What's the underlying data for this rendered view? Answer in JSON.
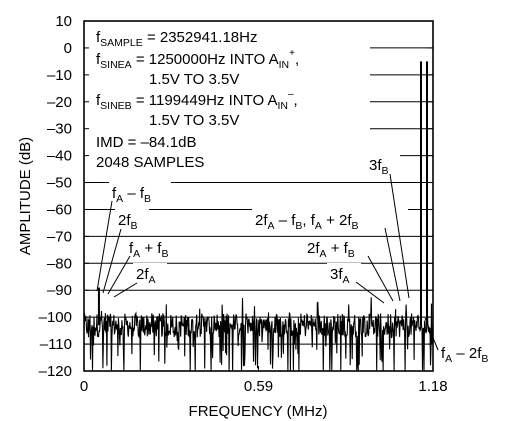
{
  "chart_data": {
    "type": "line",
    "title": "",
    "xlabel": "FREQUENCY (MHz)",
    "ylabel": "AMPLITUDE (dB)",
    "xlim": [
      0,
      1.18
    ],
    "ylim": [
      -120,
      10
    ],
    "x_ticks": [
      0,
      0.59,
      1.18
    ],
    "x_tick_labels": [
      "0",
      "0.59",
      "1.18"
    ],
    "y_ticks": [
      10,
      0,
      -10,
      -20,
      -30,
      -40,
      -50,
      -60,
      -70,
      -80,
      -90,
      -100,
      -110,
      -120
    ],
    "y_tick_labels": [
      "10",
      "0",
      "–10",
      "–20",
      "–30",
      "–40",
      "–50",
      "–60",
      "–70",
      "–80",
      "–90",
      "–100",
      "–110",
      "–120"
    ],
    "grid": true,
    "noise_floor_db": -103,
    "peaks": [
      {
        "x": 1.1995,
        "y": -5
      },
      {
        "x": 1.25,
        "y": -5
      },
      {
        "x": 0.0505,
        "y": -89
      },
      {
        "x": 1.1485,
        "y": -93
      }
    ],
    "info": {
      "l1": {
        "a": "f",
        "sub": "SAMPLE",
        "b": " = 2352941.18Hz"
      },
      "l2": {
        "a": "f",
        "sub": "SINEA",
        "b": " = 1250000Hz INTO A",
        "sub2": "IN",
        "sup": "+",
        "c": ","
      },
      "l3": "1.5V TO 3.5V",
      "l4": {
        "a": "f",
        "sub": "SINEB",
        "b": " = 1199449Hz INTO A",
        "sub2": "IN",
        "sup": "–",
        "c": ","
      },
      "l5": "1.5V TO 3.5V",
      "l6": "IMD = –84.1dB",
      "l7": "2048 SAMPLES"
    },
    "annotations": {
      "fa_minus_fb": {
        "p1": "f",
        "s1": "A",
        "m": " – f",
        "s2": "B"
      },
      "two_fb": {
        "p1": "2f",
        "s1": "B"
      },
      "fa_plus_fb": {
        "p1": "f",
        "s1": "A",
        "m": " + f",
        "s2": "B"
      },
      "two_fa": {
        "p1": "2f",
        "s1": "A"
      },
      "three_fb": {
        "p1": "3f",
        "s1": "B"
      },
      "combo": {
        "p1": "2f",
        "s1": "A",
        "m": " – f",
        "s2": "B",
        "m2": ", f",
        "s3": "A",
        "m3": " + 2f",
        "s4": "B"
      },
      "two_fa_plus_fb": {
        "p1": "2f",
        "s1": "A",
        "m": " + f",
        "s2": "B"
      },
      "three_fa": {
        "p1": "3f",
        "s1": "A"
      },
      "fa_minus_2fb": {
        "p1": "f",
        "s1": "A",
        "m": " – 2f",
        "s2": "B"
      }
    }
  }
}
